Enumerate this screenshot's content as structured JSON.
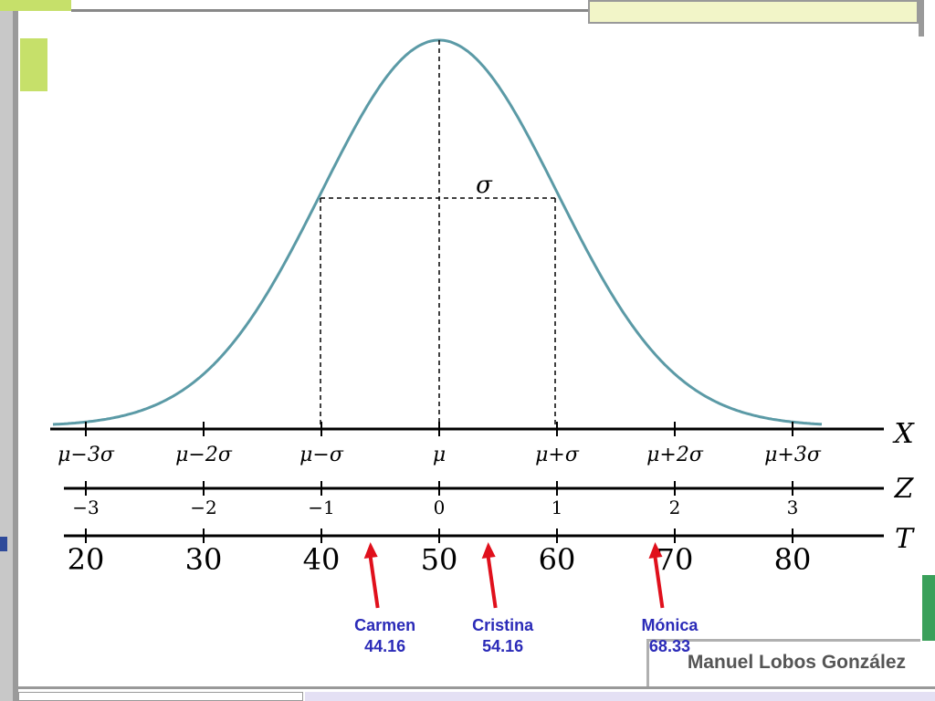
{
  "axes": [
    {
      "name": "X",
      "ticks": [
        "μ−3σ",
        "μ−2σ",
        "μ−σ",
        "μ",
        "μ+σ",
        "μ+2σ",
        "μ+3σ"
      ]
    },
    {
      "name": "Z",
      "ticks": [
        "−3",
        "−2",
        "−1",
        "0",
        "1",
        "2",
        "3"
      ]
    },
    {
      "name": "T",
      "ticks": [
        "20",
        "30",
        "40",
        "50",
        "60",
        "70",
        "80"
      ]
    }
  ],
  "sigma_label": "σ",
  "students": [
    {
      "name": "Carmen",
      "score": "44.16",
      "t": 44.16
    },
    {
      "name": "Cristina",
      "score": "54.16",
      "t": 54.16
    },
    {
      "name": "Mónica",
      "score": "68.33",
      "t": 68.33
    }
  ],
  "credit": "Manuel Lobos González",
  "colors": {
    "curve": "#5b9aa6",
    "arrow": "#e0101c",
    "label": "#2b2bb8",
    "deco_green": "#c6e06a",
    "deco_gray": "#999999"
  }
}
